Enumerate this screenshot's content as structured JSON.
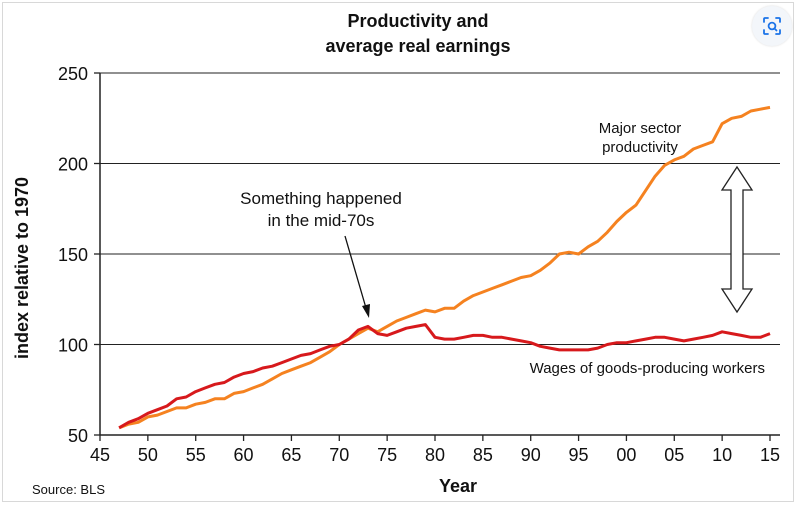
{
  "chart_data": {
    "type": "line",
    "title": "Productivity and average real earnings",
    "title_lines": [
      "Productivity and",
      "average real earnings"
    ],
    "xlabel": "Year",
    "ylabel": "index relative to 1970",
    "xlim": [
      1945,
      2015
    ],
    "ylim": [
      50,
      250
    ],
    "x_ticks": [
      1945,
      1950,
      1955,
      1960,
      1965,
      1970,
      1975,
      1980,
      1985,
      1990,
      1995,
      2000,
      2005,
      2010,
      2015
    ],
    "x_tick_labels": [
      "45",
      "50",
      "55",
      "60",
      "65",
      "70",
      "75",
      "80",
      "85",
      "90",
      "95",
      "00",
      "05",
      "10",
      "15"
    ],
    "y_ticks": [
      50,
      100,
      150,
      200,
      250
    ],
    "y_tick_labels": [
      "50",
      "100",
      "150",
      "200",
      "250"
    ],
    "grid": "horizontal",
    "series": [
      {
        "name": "Major sector productivity",
        "label_lines": [
          "Major sector",
          "productivity"
        ],
        "color": "#f58220",
        "x": [
          1947,
          1948,
          1949,
          1950,
          1951,
          1952,
          1953,
          1954,
          1955,
          1956,
          1957,
          1958,
          1959,
          1960,
          1961,
          1962,
          1963,
          1964,
          1965,
          1966,
          1967,
          1968,
          1969,
          1970,
          1971,
          1972,
          1973,
          1974,
          1975,
          1976,
          1977,
          1978,
          1979,
          1980,
          1981,
          1982,
          1983,
          1984,
          1985,
          1986,
          1987,
          1988,
          1989,
          1990,
          1991,
          1992,
          1993,
          1994,
          1995,
          1996,
          1997,
          1998,
          1999,
          2000,
          2001,
          2002,
          2003,
          2004,
          2005,
          2006,
          2007,
          2008,
          2009,
          2010,
          2011,
          2012,
          2013,
          2014,
          2015
        ],
        "values": [
          54,
          56,
          57,
          60,
          61,
          63,
          65,
          65,
          67,
          68,
          70,
          70,
          73,
          74,
          76,
          78,
          81,
          84,
          86,
          88,
          90,
          93,
          96,
          100,
          103,
          106,
          109,
          107,
          110,
          113,
          115,
          117,
          119,
          118,
          120,
          120,
          124,
          127,
          129,
          131,
          133,
          135,
          137,
          138,
          141,
          145,
          150,
          151,
          150,
          154,
          157,
          162,
          168,
          173,
          177,
          185,
          193,
          199,
          202,
          204,
          208,
          210,
          212,
          222,
          225,
          226,
          229,
          230,
          231
        ]
      },
      {
        "name": "Wages of goods-producing workers",
        "color": "#d7191c",
        "x": [
          1947,
          1948,
          1949,
          1950,
          1951,
          1952,
          1953,
          1954,
          1955,
          1956,
          1957,
          1958,
          1959,
          1960,
          1961,
          1962,
          1963,
          1964,
          1965,
          1966,
          1967,
          1968,
          1969,
          1970,
          1971,
          1972,
          1973,
          1974,
          1975,
          1976,
          1977,
          1978,
          1979,
          1980,
          1981,
          1982,
          1983,
          1984,
          1985,
          1986,
          1987,
          1988,
          1989,
          1990,
          1991,
          1992,
          1993,
          1994,
          1995,
          1996,
          1997,
          1998,
          1999,
          2000,
          2001,
          2002,
          2003,
          2004,
          2005,
          2006,
          2007,
          2008,
          2009,
          2010,
          2011,
          2012,
          2013,
          2014,
          2015
        ],
        "values": [
          54,
          57,
          59,
          62,
          64,
          66,
          70,
          71,
          74,
          76,
          78,
          79,
          82,
          84,
          85,
          87,
          88,
          90,
          92,
          94,
          95,
          97,
          99,
          100,
          103,
          108,
          110,
          106,
          105,
          107,
          109,
          110,
          111,
          104,
          103,
          103,
          104,
          105,
          105,
          104,
          104,
          103,
          102,
          101,
          99,
          98,
          97,
          97,
          97,
          97,
          98,
          100,
          101,
          101,
          102,
          103,
          104,
          104,
          103,
          102,
          103,
          104,
          105,
          107,
          106,
          105,
          104,
          104,
          106
        ]
      }
    ],
    "annotations": {
      "callout_lines": [
        "Something happened",
        "in the mid-70s"
      ],
      "callout_target": {
        "x": 1973,
        "y": 110
      },
      "gap_arrow": {
        "x": 2011,
        "y_top": 205,
        "y_bottom": 115
      }
    },
    "source": "Source: BLS"
  },
  "toolbar": {
    "lens_icon": "visual-search-icon",
    "accent": "#1a73e8"
  }
}
